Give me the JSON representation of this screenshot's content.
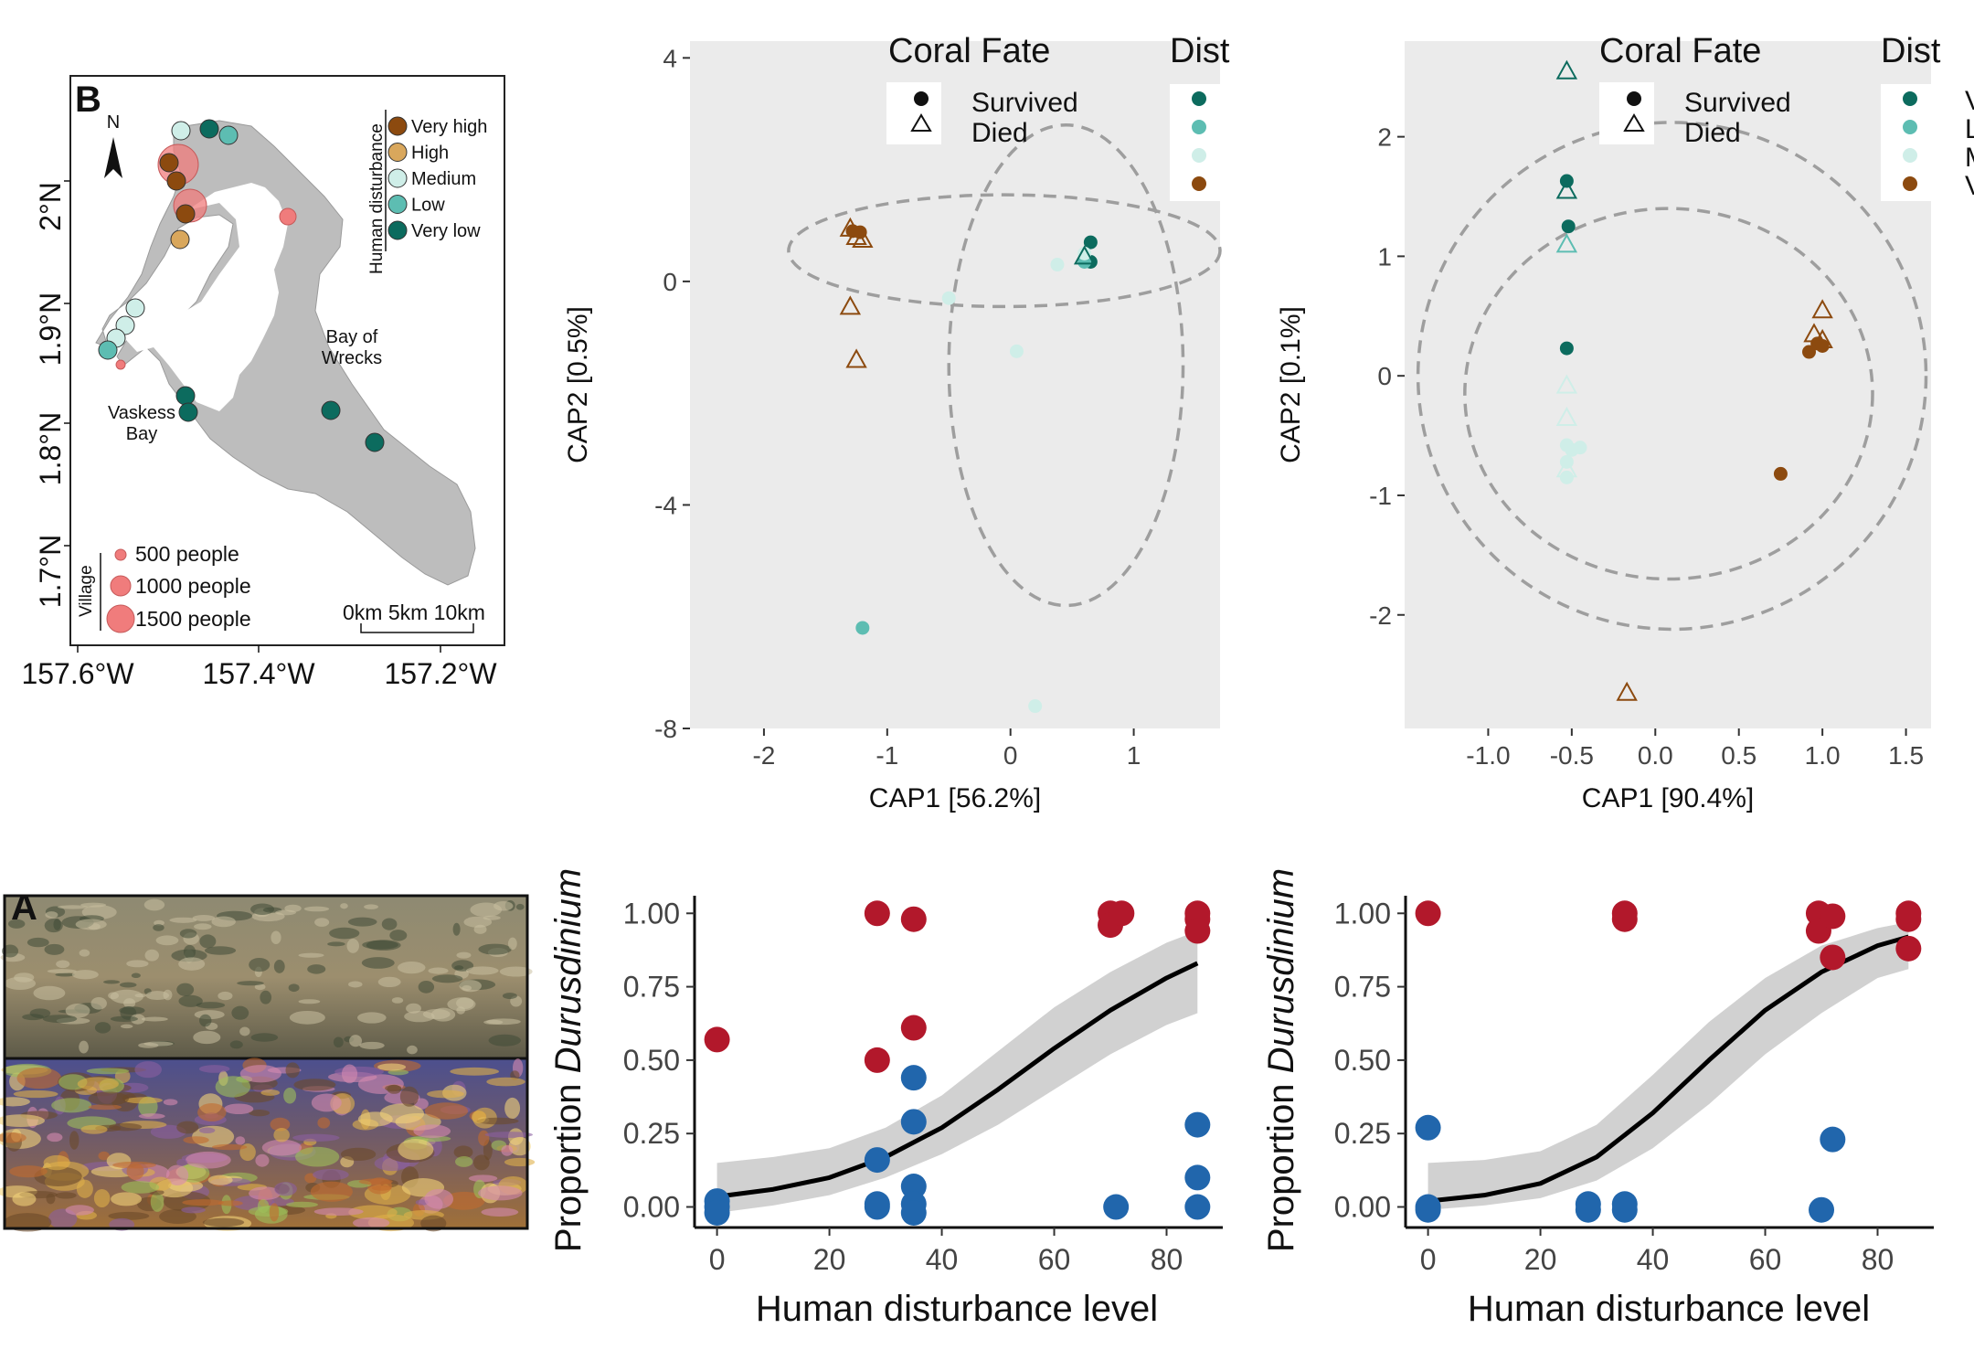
{
  "colors": {
    "very_high": "#8c4a0f",
    "high": "#d9a75c",
    "medium": "#cfeee8",
    "low": "#5dbdb2",
    "very_low": "#0c6b5e",
    "survived_pt": "#2166ac",
    "died_pt": "#b2182b",
    "panel_bg": "#ebebeb",
    "land": "#bdbdbd",
    "village": "#f07c7c"
  },
  "map": {
    "panel_label": "B",
    "north_label": "N",
    "lat_ticks": [
      "2°N",
      "1.9°N",
      "1.8°N",
      "1.7°N"
    ],
    "lon_ticks": [
      "157.6°W",
      "157.4°W",
      "157.2°W"
    ],
    "disturbance_title": "Human disturbance",
    "disturbance_levels": [
      "Very high",
      "High",
      "Medium",
      "Low",
      "Very low"
    ],
    "village_title": "Village",
    "village_sizes": [
      "500 people",
      "1000 people",
      "1500 people"
    ],
    "scale_label": "0km  5km 10km",
    "place_labels": {
      "bay_of_wrecks_1": "Bay of",
      "bay_of_wrecks_2": "Wrecks",
      "vaskess_1": "Vaskess",
      "vaskess_2": "Bay"
    }
  },
  "photo": {
    "panel_label": "A"
  },
  "cap_legend": {
    "coral_fate_title": "Coral Fate",
    "fates": [
      "Survived",
      "Died"
    ],
    "dist_title": "Dist",
    "right_partial_labels": [
      "V",
      "L",
      "M",
      "V"
    ]
  },
  "chart_data": [
    {
      "type": "scatter",
      "xlabel": "CAP1   [56.2%]",
      "ylabel": "CAP2   [0.5%]",
      "xlim": [
        -2.6,
        1.7
      ],
      "ylim": [
        -8.0,
        4.3
      ],
      "xticks": [
        "-2",
        "-1",
        "0",
        "1"
      ],
      "yticks": [
        "4",
        "0",
        "-4",
        "-8"
      ],
      "series": [
        {
          "name": "Very high",
          "fate": "Died",
          "points": [
            [
              -1.3,
              0.95
            ],
            [
              -1.25,
              0.8
            ],
            [
              -1.2,
              0.75
            ],
            [
              -1.3,
              -0.45
            ],
            [
              -1.25,
              -1.4
            ]
          ]
        },
        {
          "name": "Very high",
          "fate": "Survived",
          "points": [
            [
              -1.28,
              0.9
            ],
            [
              -1.22,
              0.88
            ]
          ]
        },
        {
          "name": "Very low",
          "fate": "Survived",
          "points": [
            [
              0.65,
              0.7
            ],
            [
              0.65,
              0.35
            ]
          ]
        },
        {
          "name": "Low",
          "fate": "Survived",
          "points": [
            [
              0.6,
              0.35
            ],
            [
              -1.2,
              -6.2
            ]
          ]
        },
        {
          "name": "Medium",
          "fate": "Survived",
          "points": [
            [
              -0.5,
              -0.3
            ],
            [
              0.05,
              -1.25
            ],
            [
              0.38,
              0.3
            ],
            [
              0.6,
              0.5
            ],
            [
              0.2,
              -7.6
            ]
          ]
        },
        {
          "name": "Very low",
          "fate": "Died",
          "points": [
            [
              0.6,
              0.45
            ]
          ]
        }
      ],
      "ellipses": [
        {
          "cx": -0.05,
          "cy": 0.55,
          "rx": 1.75,
          "ry": 1.0
        },
        {
          "cx": 0.45,
          "cy": -1.5,
          "rx": 0.95,
          "ry": 4.3
        }
      ]
    },
    {
      "type": "scatter",
      "xlabel": "CAP1   [90.4%]",
      "ylabel": "CAP2   [0.1%]",
      "xlim": [
        -1.5,
        1.65
      ],
      "ylim": [
        -2.95,
        2.8
      ],
      "xticks": [
        "-1.0",
        "-0.5",
        "0.0",
        "0.5",
        "1.0",
        "1.5"
      ],
      "yticks": [
        "2",
        "1",
        "0",
        "-1",
        "-2"
      ],
      "series": [
        {
          "name": "Very low",
          "fate": "Survived",
          "points": [
            [
              -0.53,
              1.63
            ],
            [
              -0.52,
              1.25
            ],
            [
              -0.53,
              0.23
            ]
          ]
        },
        {
          "name": "Very low",
          "fate": "Died",
          "points": [
            [
              -0.53,
              2.55
            ],
            [
              -0.53,
              1.55
            ]
          ]
        },
        {
          "name": "Low",
          "fate": "Died",
          "points": [
            [
              -0.53,
              1.1
            ]
          ]
        },
        {
          "name": "Medium",
          "fate": "Survived",
          "points": [
            [
              -0.53,
              -0.58
            ],
            [
              -0.5,
              -0.62
            ],
            [
              -0.45,
              -0.6
            ],
            [
              -0.53,
              -0.72
            ],
            [
              -0.53,
              -0.85
            ]
          ]
        },
        {
          "name": "Medium",
          "fate": "Died",
          "points": [
            [
              -0.53,
              -0.08
            ],
            [
              -0.53,
              -0.35
            ],
            [
              -0.53,
              -0.78
            ]
          ]
        },
        {
          "name": "Very high",
          "fate": "Survived",
          "points": [
            [
              0.92,
              0.2
            ],
            [
              0.97,
              0.27
            ],
            [
              1.0,
              0.25
            ],
            [
              0.75,
              -0.82
            ]
          ]
        },
        {
          "name": "Very high",
          "fate": "Died",
          "points": [
            [
              1.0,
              0.55
            ],
            [
              0.95,
              0.35
            ],
            [
              1.0,
              0.3
            ]
          ]
        },
        {
          "name": "Very high",
          "fate": "Died",
          "points": [
            [
              -0.17,
              -2.65
            ]
          ]
        }
      ],
      "ellipses": [
        {
          "cx": 0.1,
          "cy": 0.0,
          "rx": 1.52,
          "ry": 2.12
        },
        {
          "cx": 0.08,
          "cy": -0.15,
          "rx": 1.22,
          "ry": 1.55
        }
      ]
    },
    {
      "type": "scatter",
      "xlabel": "Human disturbance level",
      "ylabel_prefix": "Proportion",
      "ylabel_italic": "Durusdinium",
      "xlim": [
        -4,
        90
      ],
      "ylim": [
        -0.07,
        1.06
      ],
      "xticks": [
        "0",
        "20",
        "40",
        "60",
        "80"
      ],
      "yticks": [
        "1.00",
        "0.75",
        "0.50",
        "0.25",
        "0.00"
      ],
      "series": [
        {
          "name": "Died",
          "points": [
            [
              0,
              0.57
            ],
            [
              28.5,
              1.0
            ],
            [
              28.5,
              0.5
            ],
            [
              35,
              0.98
            ],
            [
              35,
              0.61
            ],
            [
              70,
              1.0
            ],
            [
              70,
              0.96
            ],
            [
              72,
              1.0
            ],
            [
              85.5,
              1.0
            ],
            [
              85.5,
              0.98
            ],
            [
              85.5,
              0.94
            ]
          ]
        },
        {
          "name": "Survived",
          "points": [
            [
              0,
              0.02
            ],
            [
              0,
              0.0
            ],
            [
              0,
              -0.02
            ],
            [
              28.5,
              0.16
            ],
            [
              28.5,
              0.0
            ],
            [
              28.5,
              0.01
            ],
            [
              35,
              0.44
            ],
            [
              35,
              0.29
            ],
            [
              35,
              0.07
            ],
            [
              35,
              0.01
            ],
            [
              35,
              -0.02
            ],
            [
              71,
              0.0
            ],
            [
              85.5,
              0.28
            ],
            [
              85.5,
              0.1
            ],
            [
              85.5,
              0.0
            ]
          ]
        }
      ],
      "curve_x": [
        0,
        10,
        20,
        30,
        40,
        50,
        60,
        70,
        80,
        85.5
      ],
      "curve_y": [
        0.035,
        0.06,
        0.1,
        0.17,
        0.27,
        0.4,
        0.54,
        0.67,
        0.78,
        0.83
      ],
      "ci_low": [
        -0.02,
        0.005,
        0.04,
        0.1,
        0.18,
        0.28,
        0.4,
        0.52,
        0.62,
        0.66
      ],
      "ci_high": [
        0.15,
        0.17,
        0.2,
        0.27,
        0.38,
        0.53,
        0.68,
        0.8,
        0.9,
        0.94
      ]
    },
    {
      "type": "scatter",
      "xlabel": "Human disturbance level",
      "ylabel_prefix": "Proportion",
      "ylabel_italic": "Durusdinium",
      "xlim": [
        -4,
        90
      ],
      "ylim": [
        -0.07,
        1.06
      ],
      "xticks": [
        "0",
        "20",
        "40",
        "60",
        "80"
      ],
      "yticks": [
        "1.00",
        "0.75",
        "0.50",
        "0.25",
        "0.00"
      ],
      "series": [
        {
          "name": "Died",
          "points": [
            [
              0,
              1.0
            ],
            [
              35,
              1.0
            ],
            [
              35,
              0.98
            ],
            [
              69.5,
              1.0
            ],
            [
              69.5,
              0.94
            ],
            [
              72,
              0.99
            ],
            [
              72,
              0.85
            ],
            [
              85.5,
              1.0
            ],
            [
              85.5,
              0.98
            ],
            [
              85.5,
              0.88
            ]
          ]
        },
        {
          "name": "Survived",
          "points": [
            [
              0,
              0.27
            ],
            [
              0,
              0.0
            ],
            [
              0,
              -0.01
            ],
            [
              28.5,
              0.01
            ],
            [
              28.5,
              -0.01
            ],
            [
              35,
              0.01
            ],
            [
              35,
              -0.01
            ],
            [
              70,
              -0.01
            ],
            [
              72,
              0.23
            ]
          ]
        }
      ],
      "curve_x": [
        0,
        10,
        20,
        30,
        40,
        50,
        60,
        70,
        80,
        85.5
      ],
      "curve_y": [
        0.02,
        0.04,
        0.08,
        0.17,
        0.32,
        0.5,
        0.67,
        0.8,
        0.89,
        0.92
      ],
      "ci_low": [
        -0.01,
        0.005,
        0.03,
        0.09,
        0.2,
        0.35,
        0.52,
        0.66,
        0.78,
        0.81
      ],
      "ci_high": [
        0.15,
        0.16,
        0.19,
        0.28,
        0.45,
        0.63,
        0.78,
        0.89,
        0.95,
        0.97
      ]
    }
  ]
}
